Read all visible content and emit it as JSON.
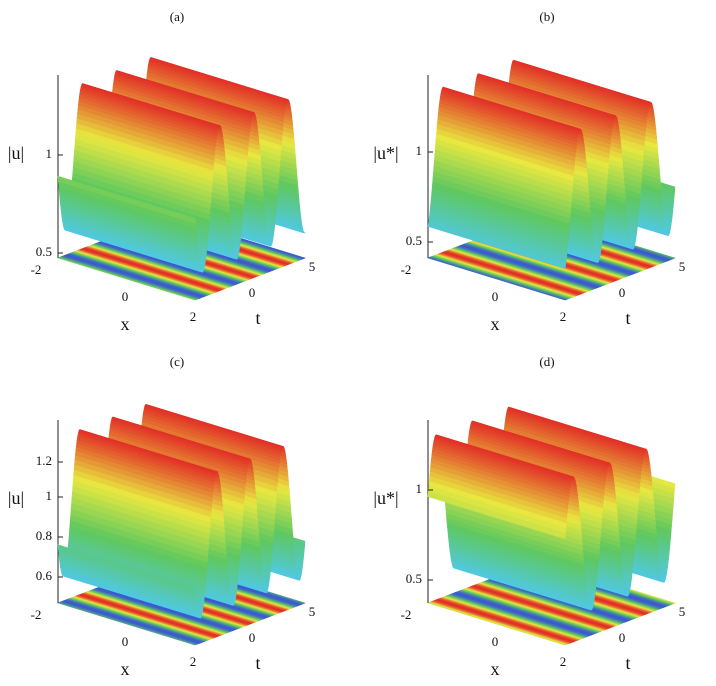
{
  "panels": [
    {
      "label": "(a)",
      "z_label": "|u|",
      "z_ticks": [
        1,
        0.5
      ],
      "x_label": "x",
      "x_ticks": [
        -2,
        0,
        2
      ],
      "t_label": "t",
      "t_ticks": [
        0,
        5
      ]
    },
    {
      "label": "(b)",
      "z_label": "|u*|",
      "z_ticks": [
        1,
        0.5
      ],
      "x_label": "x",
      "x_ticks": [
        -2,
        0,
        2
      ],
      "t_label": "t",
      "t_ticks": [
        0,
        5
      ]
    },
    {
      "label": "(c)",
      "z_label": "|u|",
      "z_ticks": [
        1.2,
        1,
        0.8,
        0.6
      ],
      "x_label": "x",
      "x_ticks": [
        -2,
        0,
        2
      ],
      "t_label": "t",
      "t_ticks": [
        0,
        5
      ]
    },
    {
      "label": "(d)",
      "z_label": "|u*|",
      "z_ticks": [
        1,
        0.5
      ],
      "x_label": "x",
      "x_ticks": [
        -2,
        0,
        2
      ],
      "t_label": "t",
      "t_ticks": [
        0,
        5
      ]
    }
  ]
}
